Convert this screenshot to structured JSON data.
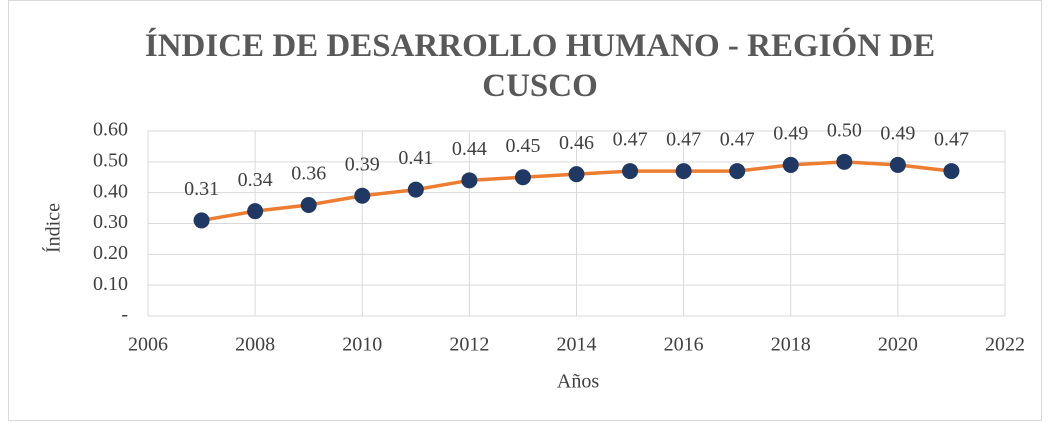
{
  "chart_data": {
    "type": "line",
    "title": "ÍNDICE DE DESARROLLO HUMANO - REGIÓN DE CUSCO",
    "x_label": "Años",
    "y_label": "Índice",
    "x": [
      2007,
      2008,
      2009,
      2010,
      2011,
      2012,
      2013,
      2014,
      2015,
      2016,
      2017,
      2018,
      2019,
      2020,
      2021
    ],
    "series": [
      {
        "name": "Índice",
        "color": "#ed7d31",
        "marker_color": "#1f3864",
        "values": [
          0.31,
          0.34,
          0.36,
          0.39,
          0.41,
          0.44,
          0.45,
          0.46,
          0.47,
          0.47,
          0.47,
          0.49,
          0.5,
          0.49,
          0.47
        ],
        "value_labels": [
          "0.31",
          "0.34",
          "0.36",
          "0.39",
          "0.41",
          "0.44",
          "0.45",
          "0.46",
          "0.47",
          "0.47",
          "0.47",
          "0.49",
          "0.50",
          "0.49",
          "0.47"
        ]
      }
    ],
    "xlim": [
      2006,
      2022
    ],
    "xticks": [
      2006,
      2008,
      2010,
      2012,
      2014,
      2016,
      2018,
      2020,
      2022
    ],
    "ylim": [
      0,
      0.6
    ],
    "yticks": [
      {
        "value": 0,
        "label": "-"
      },
      {
        "value": 0.1,
        "label": "0.10"
      },
      {
        "value": 0.2,
        "label": "0.20"
      },
      {
        "value": 0.3,
        "label": "0.30"
      },
      {
        "value": 0.4,
        "label": "0.40"
      },
      {
        "value": 0.5,
        "label": "0.50"
      },
      {
        "value": 0.6,
        "label": "0.60"
      }
    ],
    "grid": true
  }
}
